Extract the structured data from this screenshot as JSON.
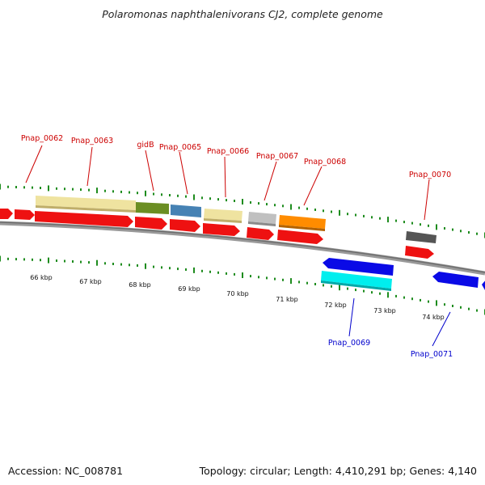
{
  "title": "Polaromonas naphthalenivorans CJ2, complete genome",
  "footer": {
    "accession": "Accession: NC_008781",
    "summary": "Topology: circular; Length: 4,410,291 bp; Genes: 4,140"
  },
  "colors": {
    "backbone": "#7f7f7f",
    "tick_green": "#1e8c1e",
    "gene_red": "#ee1111",
    "label_red": "#cc0000",
    "label_blue": "#0000cc",
    "cds_blue": "#0a0ae6",
    "cyan": "#00eeee",
    "khaki": "#efe3a0",
    "olive": "#6b8e23",
    "steel": "#4682b4",
    "silver": "#c0c0c0",
    "orange": "#ff8c00",
    "gray": "#555555"
  },
  "ticks": [
    {
      "label": "66 kbp"
    },
    {
      "label": "67 kbp"
    },
    {
      "label": "68 kbp"
    },
    {
      "label": "69 kbp"
    },
    {
      "label": "70 kbp"
    },
    {
      "label": "71 kbp"
    },
    {
      "label": "72 kbp"
    },
    {
      "label": "73 kbp"
    },
    {
      "label": "74 kbp"
    }
  ],
  "genes": [
    {
      "name": "Pnap_0062",
      "strand": "forward",
      "feature_color": "khaki"
    },
    {
      "name": "Pnap_0063",
      "strand": "forward",
      "feature_color": "khaki"
    },
    {
      "name": "gidB",
      "strand": "forward",
      "feature_color": "olive"
    },
    {
      "name": "Pnap_0065",
      "strand": "forward",
      "feature_color": "steel"
    },
    {
      "name": "Pnap_0066",
      "strand": "forward",
      "feature_color": "khaki"
    },
    {
      "name": "Pnap_0067",
      "strand": "forward",
      "feature_color": "silver"
    },
    {
      "name": "Pnap_0068",
      "strand": "forward",
      "feature_color": "orange"
    },
    {
      "name": "Pnap_0069",
      "strand": "reverse",
      "feature_color": "cyan"
    },
    {
      "name": "Pnap_0070",
      "strand": "forward",
      "feature_color": "gray"
    },
    {
      "name": "Pnap_0071",
      "strand": "reverse",
      "feature_color": "cds_blue"
    }
  ]
}
